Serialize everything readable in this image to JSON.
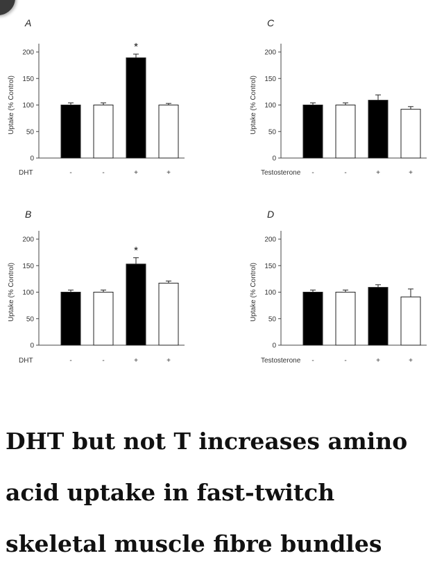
{
  "caption": "DHT but not T increases amino acid uptake in fast-twitch skeletal muscle fibre bundles",
  "colors": {
    "filled_bar": "#000000",
    "open_bar": "#ffffff",
    "axis": "#444444"
  },
  "chart_data": [
    {
      "panel": "A",
      "type": "bar",
      "ylabel": "Uptake (% Control)",
      "ylim": [
        0,
        200
      ],
      "yticks": [
        0,
        50,
        100,
        150,
        200
      ],
      "treatment": "DHT",
      "categories": [
        "-",
        "-",
        "+",
        "+"
      ],
      "values": [
        100,
        100,
        189,
        100
      ],
      "errors": [
        4,
        4,
        7,
        3
      ],
      "fills": [
        "filled",
        "open",
        "filled",
        "open"
      ],
      "significance": [
        "",
        "",
        "*",
        ""
      ],
      "grid": false
    },
    {
      "panel": "C",
      "type": "bar",
      "ylabel": "Uptake (% Control)",
      "ylim": [
        0,
        200
      ],
      "yticks": [
        0,
        50,
        100,
        150,
        200
      ],
      "treatment": "Testosterone",
      "categories": [
        "-",
        "-",
        "+",
        "+"
      ],
      "values": [
        100,
        100,
        109,
        92
      ],
      "errors": [
        4,
        4,
        10,
        5
      ],
      "fills": [
        "filled",
        "open",
        "filled",
        "open"
      ],
      "significance": [
        "",
        "",
        "",
        ""
      ],
      "grid": false
    },
    {
      "panel": "B",
      "type": "bar",
      "ylabel": "Uptake (% Control)",
      "ylim": [
        0,
        200
      ],
      "yticks": [
        0,
        50,
        100,
        150,
        200
      ],
      "treatment": "DHT",
      "categories": [
        "-",
        "-",
        "+",
        "+"
      ],
      "values": [
        100,
        100,
        153,
        117
      ],
      "errors": [
        4,
        4,
        12,
        4
      ],
      "fills": [
        "filled",
        "open",
        "filled",
        "open"
      ],
      "significance": [
        "",
        "",
        "*",
        ""
      ],
      "grid": false
    },
    {
      "panel": "D",
      "type": "bar",
      "ylabel": "Uptake (% Control)",
      "ylim": [
        0,
        200
      ],
      "yticks": [
        0,
        50,
        100,
        150,
        200
      ],
      "treatment": "Testosterone",
      "categories": [
        "-",
        "-",
        "+",
        "+"
      ],
      "values": [
        100,
        100,
        109,
        91
      ],
      "errors": [
        4,
        4,
        5,
        15
      ],
      "fills": [
        "filled",
        "open",
        "filled",
        "open"
      ],
      "significance": [
        "",
        "",
        "",
        ""
      ],
      "grid": false
    }
  ]
}
